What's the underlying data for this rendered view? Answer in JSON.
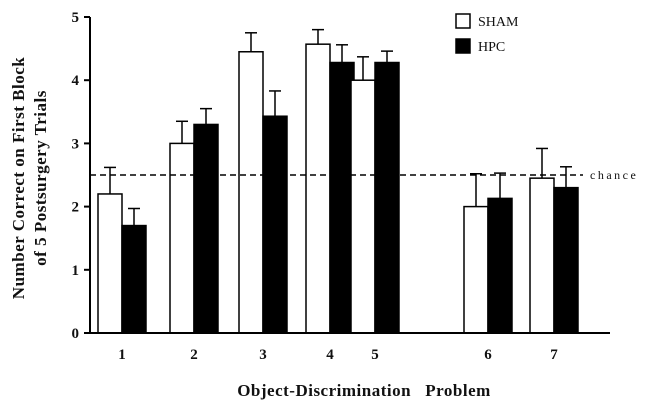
{
  "chart_data": {
    "type": "bar",
    "title": "",
    "xlabel": "Object-Discrimination   Problem",
    "ylabel_lines": [
      "Number Correct on First Block",
      "of 5 Postsurgery Trials"
    ],
    "ylim": [
      0,
      5
    ],
    "yticks": [
      "0",
      "1",
      "2",
      "3",
      "4",
      "5"
    ],
    "categories": [
      "1",
      "2",
      "3",
      "4",
      "5",
      "6",
      "7"
    ],
    "series": [
      {
        "name": "SHAM",
        "color": "#ffffff",
        "values": [
          2.2,
          3.0,
          4.45,
          4.57,
          4.0,
          2.0,
          2.45
        ],
        "errors": [
          0.42,
          0.35,
          0.3,
          0.23,
          0.37,
          0.52,
          0.47
        ]
      },
      {
        "name": "HPC",
        "color": "#000000",
        "values": [
          1.7,
          3.3,
          3.43,
          4.28,
          4.28,
          2.13,
          2.3
        ],
        "errors": [
          0.27,
          0.25,
          0.4,
          0.28,
          0.18,
          0.4,
          0.33
        ]
      }
    ],
    "reference_line": {
      "value": 2.5,
      "label": "chance",
      "style": "dashed"
    },
    "legend_position": "top-right",
    "grid": false
  }
}
